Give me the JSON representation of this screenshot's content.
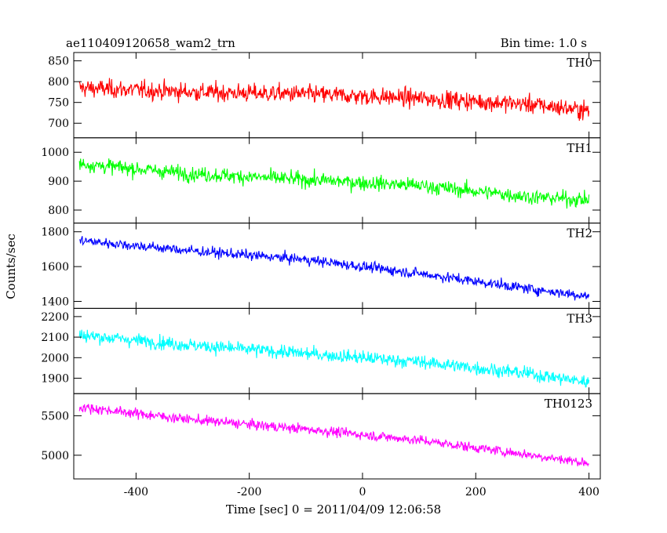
{
  "chart_data": {
    "type": "line",
    "title": "ae110409120658_wam2_trn",
    "subtitle": "Bin time: 1.0 s",
    "xlabel": "Time [sec] 0 = 2011/04/09 12:06:58",
    "ylabel": "Counts/sec",
    "xlim": [
      -510,
      420
    ],
    "xticks": [
      -400,
      -200,
      0,
      200,
      400
    ],
    "x_start": -500,
    "x_end": 400,
    "bin_time": 1.0,
    "grid": false,
    "panels": [
      {
        "name": "TH0",
        "color": "#ff0000",
        "ylim": [
          665,
          870
        ],
        "yticks": [
          700,
          750,
          800,
          850
        ],
        "trend": [
          [
            -500,
            785
          ],
          [
            -300,
            775
          ],
          [
            -100,
            770
          ],
          [
            100,
            760
          ],
          [
            300,
            745
          ],
          [
            400,
            730
          ]
        ],
        "noise_amplitude": 28
      },
      {
        "name": "TH1",
        "color": "#00ff00",
        "ylim": [
          755,
          1050
        ],
        "yticks": [
          800,
          900,
          1000
        ],
        "trend": [
          [
            -500,
            960
          ],
          [
            -300,
            925
          ],
          [
            -100,
            905
          ],
          [
            100,
            885
          ],
          [
            300,
            845
          ],
          [
            400,
            835
          ]
        ],
        "noise_amplitude": 33
      },
      {
        "name": "TH2",
        "color": "#0000ff",
        "ylim": [
          1360,
          1850
        ],
        "yticks": [
          1400,
          1600,
          1800
        ],
        "trend": [
          [
            -500,
            1750
          ],
          [
            -300,
            1690
          ],
          [
            -100,
            1640
          ],
          [
            100,
            1560
          ],
          [
            300,
            1470
          ],
          [
            400,
            1430
          ]
        ],
        "noise_amplitude": 38
      },
      {
        "name": "TH3",
        "color": "#00ffff",
        "ylim": [
          1825,
          2240
        ],
        "yticks": [
          1900,
          2000,
          2100,
          2200
        ],
        "trend": [
          [
            -500,
            2110
          ],
          [
            -300,
            2060
          ],
          [
            -100,
            2020
          ],
          [
            100,
            1980
          ],
          [
            300,
            1920
          ],
          [
            400,
            1880
          ]
        ],
        "noise_amplitude": 42
      },
      {
        "name": "TH0123",
        "color": "#ff00ff",
        "ylim": [
          4700,
          5780
        ],
        "yticks": [
          5000,
          5500
        ],
        "trend": [
          [
            -500,
            5610
          ],
          [
            -300,
            5450
          ],
          [
            -100,
            5330
          ],
          [
            100,
            5190
          ],
          [
            300,
            5000
          ],
          [
            400,
            4900
          ]
        ],
        "noise_amplitude": 80
      }
    ]
  }
}
